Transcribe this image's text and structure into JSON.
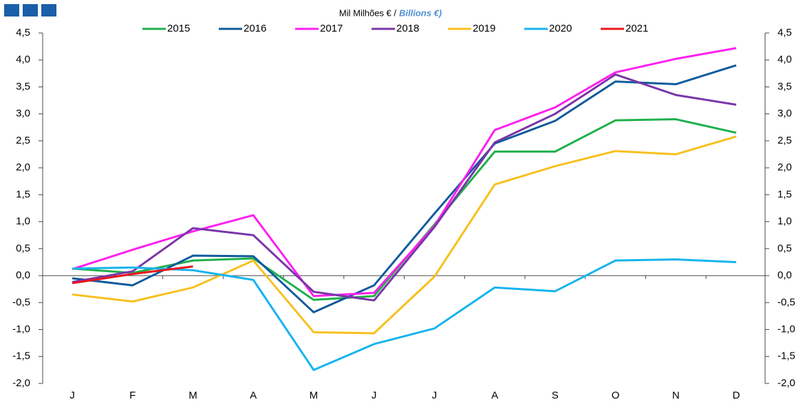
{
  "chart_data": {
    "type": "line",
    "title": "Mil Milhões € /",
    "subtitle": "Billions €)",
    "categories": [
      "J",
      "F",
      "M",
      "A",
      "M",
      "J",
      "J",
      "A",
      "S",
      "O",
      "N",
      "D"
    ],
    "series": [
      {
        "name": "2015",
        "color": "#1fb04c",
        "values": [
          0.13,
          0.05,
          0.28,
          0.32,
          -0.45,
          -0.38,
          0.95,
          2.3,
          2.3,
          2.88,
          2.9,
          2.65
        ]
      },
      {
        "name": "2016",
        "color": "#0e5a9c",
        "values": [
          -0.05,
          -0.18,
          0.37,
          0.36,
          -0.68,
          -0.18,
          1.15,
          2.45,
          2.87,
          3.6,
          3.55,
          3.9
        ]
      },
      {
        "name": "2017",
        "color": "#ff1ff0",
        "values": [
          0.12,
          0.48,
          0.82,
          1.12,
          -0.38,
          -0.32,
          0.92,
          2.7,
          3.12,
          3.77,
          4.02,
          4.22
        ]
      },
      {
        "name": "2018",
        "color": "#7a35a8",
        "values": [
          -0.12,
          0.08,
          0.88,
          0.75,
          -0.3,
          -0.46,
          0.9,
          2.47,
          3.0,
          3.73,
          3.35,
          3.17
        ]
      },
      {
        "name": "2019",
        "color": "#f7c01e",
        "values": [
          -0.35,
          -0.48,
          -0.22,
          0.28,
          -1.05,
          -1.07,
          -0.02,
          1.69,
          2.03,
          2.31,
          2.25,
          2.58
        ]
      },
      {
        "name": "2020",
        "color": "#14b4ee",
        "values": [
          0.13,
          0.15,
          0.1,
          -0.08,
          -1.75,
          -1.27,
          -0.98,
          -0.22,
          -0.29,
          0.28,
          0.3,
          0.25
        ]
      },
      {
        "name": "2021",
        "color": "#e8141c",
        "values": [
          -0.14,
          0.03,
          0.17,
          null,
          null,
          null,
          null,
          null,
          null,
          null,
          null,
          null
        ]
      }
    ],
    "ylim": [
      -2.0,
      4.5
    ],
    "yticks": [
      {
        "value": -2.0,
        "label": "-2,0"
      },
      {
        "value": -1.5,
        "label": "-1,5"
      },
      {
        "value": -1.0,
        "label": "-1,0"
      },
      {
        "value": -0.5,
        "label": "-0,5"
      },
      {
        "value": 0.0,
        "label": "0,0"
      },
      {
        "value": 0.5,
        "label": "0,5"
      },
      {
        "value": 1.0,
        "label": "1,0"
      },
      {
        "value": 1.5,
        "label": "1,5"
      },
      {
        "value": 2.0,
        "label": "2,0"
      },
      {
        "value": 2.5,
        "label": "2,5"
      },
      {
        "value": 3.0,
        "label": "3,0"
      },
      {
        "value": 3.5,
        "label": "3,5"
      },
      {
        "value": 4.0,
        "label": "4,0"
      },
      {
        "value": 4.5,
        "label": "4,5"
      }
    ],
    "grid": false,
    "legend": "top"
  }
}
